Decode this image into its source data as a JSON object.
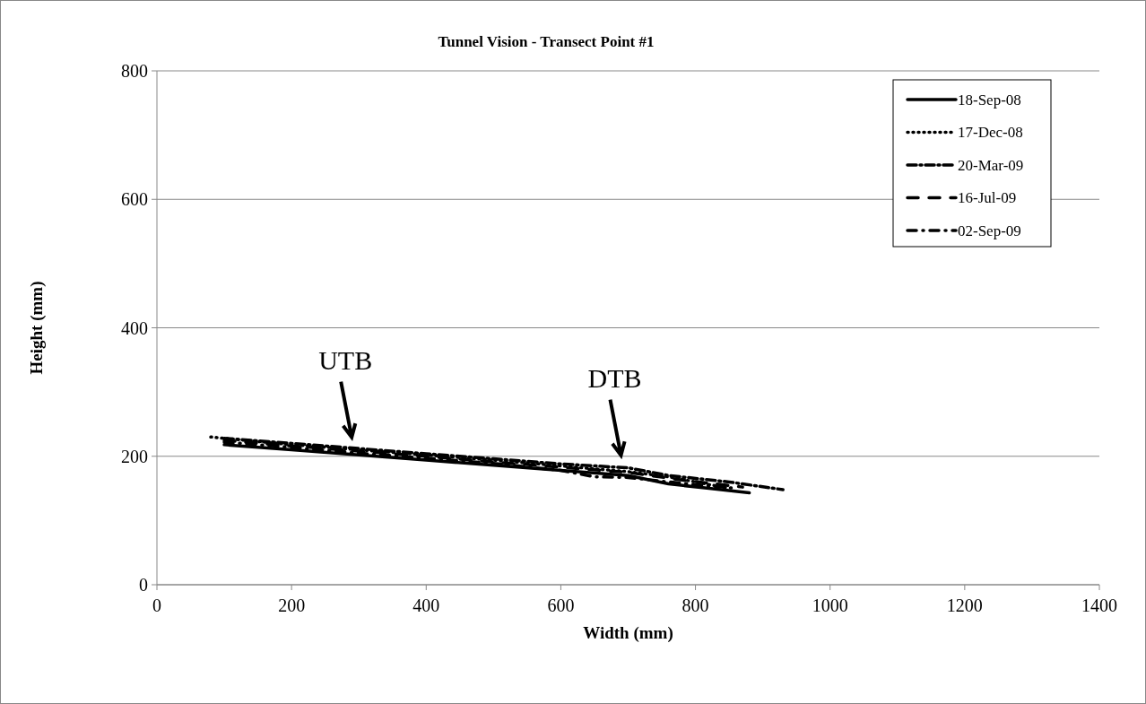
{
  "chart_data": {
    "type": "line",
    "title": "Tunnel Vision - Transect Point #1",
    "xlabel": "Width (mm)",
    "ylabel": "Height (mm)",
    "xlim": [
      0,
      1400
    ],
    "xticks": [
      0,
      200,
      400,
      600,
      800,
      1000,
      1200,
      1400
    ],
    "ylim": [
      0,
      800
    ],
    "yticks": [
      0,
      200,
      400,
      600,
      800
    ],
    "grid": "y",
    "legend": "top right",
    "marker": "none",
    "series": [
      {
        "name": "18-Sep-08",
        "color": "#000000",
        "line_style": "solid",
        "x": [
          100,
          200,
          300,
          400,
          500,
          600,
          700,
          760,
          820,
          880
        ],
        "values": [
          218,
          210,
          202,
          194,
          186,
          178,
          170,
          157,
          150,
          143
        ]
      },
      {
        "name": "17-Dec-08",
        "color": "#000000",
        "line_style": "dotted",
        "x": [
          80,
          200,
          300,
          400,
          500,
          600,
          700,
          760,
          850
        ],
        "values": [
          230,
          218,
          210,
          202,
          194,
          185,
          176,
          168,
          150
        ]
      },
      {
        "name": "20-Mar-09",
        "color": "#000000",
        "line_style": "dashed",
        "x": [
          100,
          200,
          300,
          400,
          500,
          600,
          700,
          760,
          850,
          930
        ],
        "values": [
          228,
          220,
          212,
          204,
          196,
          188,
          182,
          170,
          160,
          148
        ]
      },
      {
        "name": "16-Jul-09",
        "color": "#000000",
        "line_style": "dashed",
        "x": [
          100,
          200,
          300,
          400,
          500,
          600,
          700,
          780,
          870
        ],
        "values": [
          225,
          216,
          208,
          200,
          191,
          183,
          175,
          163,
          152
        ]
      },
      {
        "name": "02-Sep-09",
        "color": "#000000",
        "line_style": "dashed",
        "x": [
          100,
          200,
          300,
          400,
          500,
          600,
          650,
          700,
          760,
          860
        ],
        "values": [
          222,
          214,
          205,
          197,
          189,
          178,
          168,
          167,
          160,
          150
        ]
      }
    ],
    "annotations": [
      {
        "text": "UTB",
        "x": 300,
        "y": 210
      },
      {
        "text": "DTB",
        "x": 700,
        "y": 182
      }
    ]
  }
}
